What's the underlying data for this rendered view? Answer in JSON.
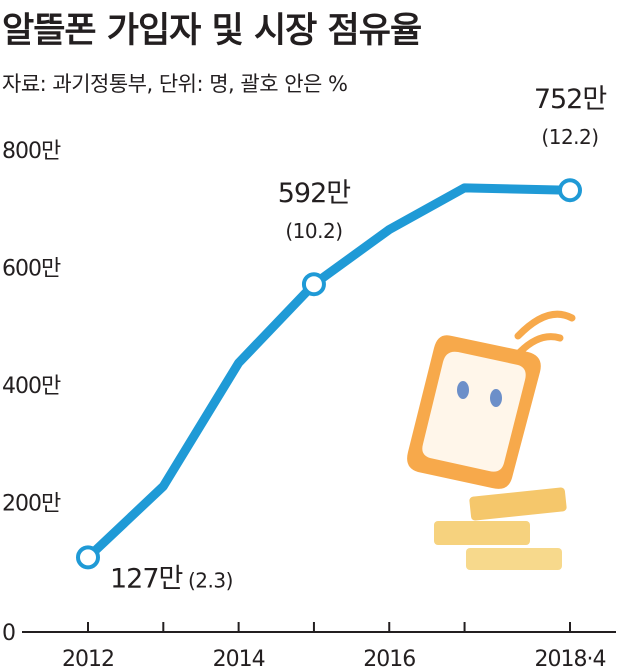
{
  "title": "알뜰폰 가입자 및 시장 점유율",
  "subtitle": "자료: 과기정통부, 단위: 명, 괄호 안은 %",
  "colors": {
    "line": "#1f9ad6",
    "axis": "#231f20",
    "point_fill": "#ffffff",
    "phone": "#f7a94b",
    "coin": "#f5c76b"
  },
  "icons": [
    "mobile-phone-illustration",
    "coin-stack-illustration"
  ],
  "chart_data": {
    "type": "line",
    "title": "알뜰폰 가입자 및 시장 점유율",
    "xlabel": "",
    "ylabel": "",
    "x_ticks": [
      "2012",
      "2014",
      "2016",
      "2018·4"
    ],
    "y_ticks": [
      "0",
      "200만",
      "400만",
      "600만",
      "800만"
    ],
    "ylim": [
      0,
      9000000
    ],
    "xlim": [
      2012,
      2018.4
    ],
    "grid": false,
    "legend": "none",
    "series": [
      {
        "x": [
          2012,
          2013,
          2014,
          2015,
          2016,
          2017,
          2018.4
        ],
        "y": [
          1270000,
          2480000,
          4580000,
          5920000,
          6850000,
          7560000,
          7520000
        ]
      }
    ],
    "annotations": [
      {
        "x": 2012,
        "y": 1270000,
        "main": "127만",
        "sub": "(2.3)",
        "placement": "right"
      },
      {
        "x": 2015,
        "y": 5920000,
        "main": "592만",
        "sub": "(10.2)",
        "placement": "above"
      },
      {
        "x": 2018.4,
        "y": 7520000,
        "main": "752만",
        "sub": "(12.2)",
        "placement": "above"
      }
    ]
  }
}
